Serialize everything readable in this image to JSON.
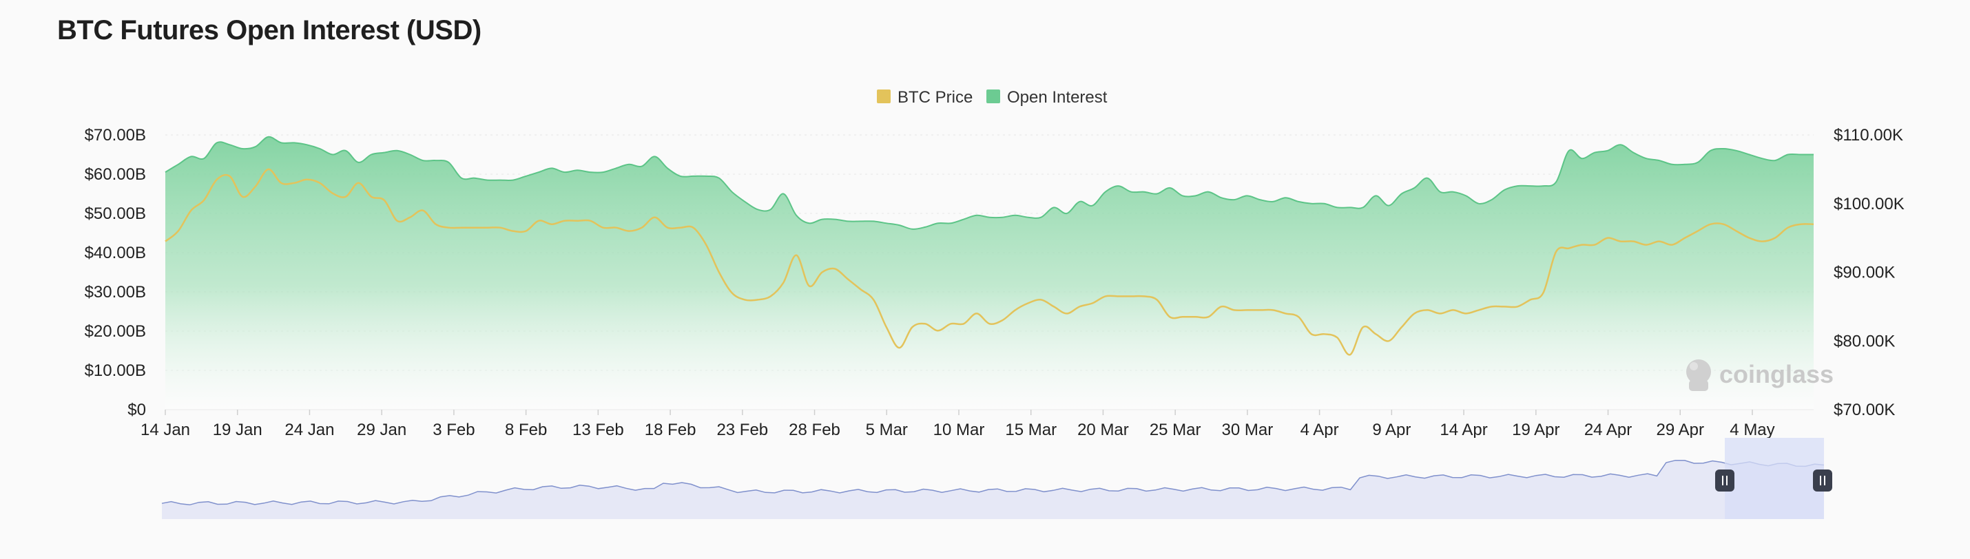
{
  "page": {
    "title": "BTC Futures Open Interest (USD)"
  },
  "brand": {
    "watermark": "coinglass",
    "icon": "coinglass-logo-icon"
  },
  "colors": {
    "price": "#e3c35b",
    "oi_fill_top": "#7fd29f",
    "oi_line": "#5cc487",
    "navigator_line": "#7f90cc",
    "navigator_fill": "#e6e8f6",
    "navigator_selection": "#d7ddf7",
    "grid": "#ececec"
  },
  "chart_data": {
    "type": "area",
    "title": "BTC Futures Open Interest (USD)",
    "legend": {
      "position": "top-center",
      "items": [
        "BTC Price",
        "Open Interest"
      ]
    },
    "x_ticks": [
      "14 Jan",
      "19 Jan",
      "24 Jan",
      "29 Jan",
      "3 Feb",
      "8 Feb",
      "13 Feb",
      "18 Feb",
      "23 Feb",
      "28 Feb",
      "5 Mar",
      "10 Mar",
      "15 Mar",
      "20 Mar",
      "25 Mar",
      "30 Mar",
      "4 Apr",
      "9 Apr",
      "14 Apr",
      "19 Apr",
      "24 Apr",
      "29 Apr",
      "4 May"
    ],
    "y_left": {
      "ticks": [
        "$0",
        "$10.00B",
        "$20.00B",
        "$30.00B",
        "$40.00B",
        "$50.00B",
        "$60.00B",
        "$70.00B"
      ],
      "min": 0,
      "max": 70
    },
    "y_right": {
      "ticks": [
        "$70.00K",
        "$80.00K",
        "$90.00K",
        "$100.00K",
        "$110.00K"
      ],
      "min": 70,
      "max": 110
    },
    "grid": true,
    "series": [
      {
        "name": "Open Interest",
        "axis": "left",
        "units": "USD billions",
        "values": [
          60.5,
          62.5,
          64.5,
          64,
          68,
          67.5,
          66.5,
          67,
          69.5,
          68,
          68,
          67.5,
          66.5,
          65,
          66,
          63,
          65,
          65.5,
          66,
          65,
          63.5,
          63.5,
          63,
          59,
          59,
          58.5,
          58.5,
          58.5,
          59.5,
          60.5,
          61.5,
          60.5,
          61,
          60.5,
          60.5,
          61.5,
          62.5,
          62,
          64.5,
          61.5,
          59.5,
          59.5,
          59.5,
          59,
          55.5,
          53,
          51,
          51,
          55,
          49.5,
          47.5,
          48.5,
          48.5,
          48,
          48,
          48,
          47.5,
          47,
          46,
          46.5,
          47.5,
          47.5,
          48.5,
          49.5,
          49,
          49,
          49.5,
          49,
          49,
          51.5,
          50,
          53,
          52,
          55.5,
          57,
          55.5,
          55.5,
          55,
          56.5,
          54.5,
          54.5,
          55.5,
          54,
          53.5,
          54.5,
          53.5,
          53,
          54,
          53,
          52.5,
          52.5,
          51.5,
          51.5,
          51.5,
          54.5,
          52,
          55,
          56.5,
          59,
          55.5,
          55.5,
          54.5,
          52.5,
          53.5,
          56,
          57,
          57,
          57,
          58,
          66,
          64,
          65.5,
          66,
          67.5,
          65.5,
          64,
          63.5,
          62.5,
          62.5,
          63,
          66,
          66.5,
          66,
          65,
          64,
          63.5,
          65,
          65,
          65
        ]
      },
      {
        "name": "BTC Price",
        "axis": "right",
        "units": "USD thousands",
        "values": [
          94.5,
          96,
          99,
          100.5,
          103.5,
          104,
          101,
          102.5,
          105,
          103,
          103,
          103.5,
          103,
          101.5,
          101,
          103,
          101,
          100.5,
          97.5,
          98,
          99,
          97,
          96.5,
          96.5,
          96.5,
          96.5,
          96.5,
          96,
          96,
          97.5,
          97,
          97.5,
          97.5,
          97.5,
          96.5,
          96.5,
          96,
          96.5,
          98,
          96.5,
          96.5,
          96.5,
          94,
          90,
          87,
          86,
          86,
          86.5,
          88.5,
          92.5,
          88,
          90,
          90.5,
          89,
          87.5,
          86,
          82,
          79,
          82,
          82.5,
          81.5,
          82.5,
          82.5,
          84,
          82.5,
          83,
          84.5,
          85.5,
          86,
          85,
          84,
          85,
          85.5,
          86.5,
          86.5,
          86.5,
          86.5,
          86,
          83.5,
          83.5,
          83.5,
          83.5,
          85,
          84.5,
          84.5,
          84.5,
          84.5,
          84,
          83.5,
          81,
          81,
          80.5,
          78,
          82,
          81,
          80,
          82,
          84,
          84.5,
          84,
          84.5,
          84,
          84.5,
          85,
          85,
          85,
          86,
          87,
          93,
          93.5,
          94,
          94,
          95,
          94.5,
          94.5,
          94,
          94.5,
          94,
          95,
          96,
          97,
          97,
          96,
          95,
          94.5,
          95,
          96.5,
          97,
          97
        ]
      }
    ],
    "navigator": {
      "selection": {
        "from": "2 May",
        "to": "9 May"
      }
    }
  }
}
